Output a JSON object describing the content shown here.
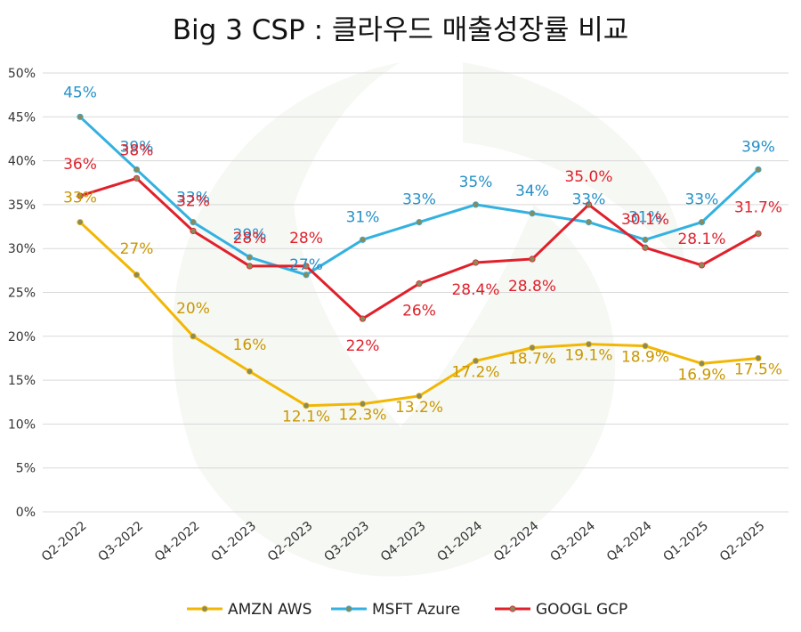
{
  "chart_data": {
    "type": "line",
    "title": "Big 3 CSP : 클라우드 매출성장률 비교",
    "categories": [
      "Q2-2022",
      "Q3-2022",
      "Q4-2022",
      "Q1-2023",
      "Q2-2023",
      "Q3-2023",
      "Q4-2023",
      "Q1-2024",
      "Q2-2024",
      "Q3-2024",
      "Q4-2024",
      "Q1-2025",
      "Q2-2025"
    ],
    "y_ticks": [
      "0%",
      "5%",
      "10%",
      "15%",
      "20%",
      "25%",
      "30%",
      "35%",
      "40%",
      "45%",
      "50%"
    ],
    "ylim": [
      0,
      50
    ],
    "grid": true,
    "legend_position": "bottom",
    "series": [
      {
        "name": "AMZN AWS",
        "color": "#f2b705",
        "label_color": "#c99700",
        "values": [
          33,
          27,
          20,
          16,
          12.1,
          12.3,
          13.2,
          17.2,
          18.7,
          19.1,
          18.9,
          16.9,
          17.5
        ],
        "labels": [
          "33%",
          "27%",
          "20%",
          "16%",
          "12.1%",
          "12.3%",
          "13.2%",
          "17.2%",
          "18.7%",
          "19.1%",
          "18.9%",
          "16.9%",
          "17.5%"
        ]
      },
      {
        "name": "MSFT Azure",
        "color": "#33b1e0",
        "label_color": "#2490c8",
        "values": [
          45,
          39,
          33,
          29,
          27,
          31,
          33,
          35,
          34,
          33,
          31,
          33,
          39
        ],
        "labels": [
          "45%",
          "39%",
          "33%",
          "29%",
          "27%",
          "31%",
          "33%",
          "35%",
          "34%",
          "33%",
          "31%",
          "33%",
          "39%"
        ]
      },
      {
        "name": "GOOGL GCP",
        "color": "#e0202a",
        "label_color": "#e0202a",
        "values": [
          36,
          38,
          32,
          28,
          28,
          22,
          26,
          28.4,
          28.8,
          35.0,
          30.1,
          28.1,
          31.7
        ],
        "labels": [
          "36%",
          "38%",
          "32%",
          "28%",
          "28%",
          "22%",
          "26%",
          "28.4%",
          "28.8%",
          "35.0%",
          "30.1%",
          "28.1%",
          "31.7%"
        ]
      }
    ]
  }
}
